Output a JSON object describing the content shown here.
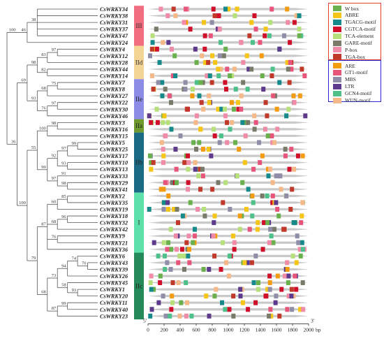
{
  "genes": [
    "CsWRKY34",
    "CsWRKY38",
    "CsWRKY31",
    "CsWRKY37",
    "CsWRKY47",
    "CsWRKY24",
    "CsWRKY4",
    "CsWRKY12",
    "CsWRKY28",
    "CsWRKY44",
    "CsWRKY14",
    "CsWRKY7",
    "CsWRKY8",
    "CsWRKY27",
    "CsWRKY22",
    "CsWRKY30",
    "CsWRKY46",
    "CsWRKY3",
    "CsWRKY16",
    "CsWRKY15",
    "CsWRKY5",
    "CsWRKY25",
    "CsWRKY17",
    "CsWRKY10",
    "CsWRKY13",
    "CsWRKY33",
    "CsWRKY29",
    "CsWRKY41",
    "CsWRKY2",
    "CsWRKY35",
    "CsWRKY19",
    "CsWRKY18",
    "CsWRKY32",
    "CsWRKY42",
    "CsWRKY9",
    "CsWRKY21",
    "CsWRKY36",
    "CsWRKY6",
    "CsWRKY43",
    "CsWRKY39",
    "CsWRKY26",
    "CsWRKY45",
    "CsWRKY1",
    "CsWRKY20",
    "CsWRKY11",
    "CsWRKY40",
    "CsWRKY23"
  ],
  "groups": [
    {
      "label": "III",
      "from": 0,
      "to": 5,
      "color": "#f06e80"
    },
    {
      "label": "IId",
      "from": 6,
      "to": 10,
      "color": "#f5d596"
    },
    {
      "label": "IIe",
      "from": 11,
      "to": 16,
      "color": "#8c8ce6"
    },
    {
      "label": "IIa",
      "from": 17,
      "to": 18,
      "color": "#6e9a2e"
    },
    {
      "label": "IIb",
      "from": 19,
      "to": 27,
      "color": "#1a6a86"
    },
    {
      "label": "I",
      "from": 28,
      "to": 36,
      "color": "#5ee0aa"
    },
    {
      "label": "IIc",
      "from": 37,
      "to": 46,
      "color": "#248a5a"
    }
  ],
  "tree": {
    "children": [
      {
        "support": "100",
        "children": [
          {
            "support": "46",
            "children": [
              {
                "support": "38",
                "children": [
                  {
                    "leaf": 0
                  },
                  {
                    "leaf": 1
                  },
                  {
                    "leaf": 2
                  },
                  {
                    "leaf": 3
                  },
                  {
                    "leaf": 4
                  }
                ]
              },
              {
                "leaf": 5
              }
            ]
          }
        ]
      },
      {
        "support": "36",
        "children": [
          {
            "support": "69",
            "children": [
              {
                "support": "98",
                "children": [
                  {
                    "support": "83",
                    "children": [
                      {
                        "support": "97",
                        "children": [
                          {
                            "leaf": 6
                          },
                          {
                            "leaf": 7
                          }
                        ]
                      },
                      {
                        "leaf": 8
                      }
                    ]
                  },
                  {
                    "support": "82",
                    "children": [
                      {
                        "leaf": 9
                      },
                      {
                        "leaf": 10
                      }
                    ]
                  }
                ]
              },
              {
                "support": "93",
                "children": [
                  {
                    "support": "68",
                    "children": [
                      {
                        "support": "75",
                        "children": [
                          {
                            "leaf": 11
                          },
                          {
                            "leaf": 12
                          }
                        ]
                      },
                      {
                        "leaf": 13
                      }
                    ]
                  },
                  {
                    "support": "76",
                    "children": [
                      {
                        "support": "97",
                        "children": [
                          {
                            "leaf": 14
                          },
                          {
                            "leaf": 15
                          }
                        ]
                      },
                      {
                        "leaf": 16
                      }
                    ]
                  }
                ]
              }
            ]
          },
          {
            "support": "100",
            "children": [
              {
                "support": "55",
                "children": [
                  {
                    "support": "100",
                    "children": [
                      {
                        "support": "98",
                        "children": [
                          {
                            "leaf": 17
                          },
                          {
                            "leaf": 18
                          }
                        ]
                      },
                      {
                        "leaf": 19
                      }
                    ]
                  },
                  {
                    "support": "99",
                    "children": [
                      {
                        "support": "92",
                        "children": [
                          {
                            "support": "97",
                            "children": [
                              {
                                "support": "99",
                                "children": [
                                  {
                                    "leaf": 20
                                  },
                                  {
                                    "leaf": 21
                                  }
                                ]
                              },
                              {
                                "leaf": 22
                              }
                            ]
                          },
                          {
                            "support": "93",
                            "children": [
                              {
                                "leaf": 23
                              },
                              {
                                "leaf": 24
                              }
                            ]
                          }
                        ]
                      },
                      {
                        "support": "97",
                        "children": [
                          {
                            "support": "91",
                            "children": [
                              {
                                "leaf": 25
                              }
                            ]
                          },
                          {
                            "support": "98",
                            "children": [
                              {
                                "leaf": 26
                              },
                              {
                                "leaf": 27
                              }
                            ]
                          }
                        ]
                      }
                    ]
                  }
                ]
              },
              {
                "support": "79",
                "children": [
                  {
                    "support": "87",
                    "children": [
                      {
                        "support": "60",
                        "children": [
                          {
                            "support": "85",
                            "children": [
                              {
                                "leaf": 28
                              },
                              {
                                "leaf": 29
                              }
                            ]
                          },
                          {
                            "leaf": 30
                          }
                        ]
                      },
                      {
                        "support": "68",
                        "children": [
                          {
                            "support": "96",
                            "children": [
                              {
                                "leaf": 31
                              },
                              {
                                "leaf": 32
                              }
                            ]
                          },
                          {
                            "leaf": 33
                          }
                        ]
                      },
                      {
                        "support": "76",
                        "children": [
                          {
                            "leaf": 34
                          },
                          {
                            "leaf": 35
                          }
                        ]
                      },
                      {
                        "leaf": 36
                      }
                    ]
                  },
                  {
                    "support": "68",
                    "children": [
                      {
                        "support": "73",
                        "children": [
                          {
                            "support": "94",
                            "children": [
                              {
                                "support": "74",
                                "children": [
                                  {
                                    "leaf": 37
                                  },
                                  {
                                    "support": "70",
                                    "children": [
                                      {
                                        "leaf": 38
                                      },
                                      {
                                        "leaf": 39
                                      }
                                    ]
                                  }
                                ]
                              },
                              {
                                "leaf": 40
                              }
                            ]
                          },
                          {
                            "support": "58",
                            "children": [
                              {
                                "leaf": 41
                              },
                              {
                                "support": "93",
                                "children": [
                                  {
                                    "leaf": 42
                                  },
                                  {
                                    "leaf": 43
                                  }
                                ]
                              }
                            ]
                          }
                        ]
                      },
                      {
                        "support": "87",
                        "children": [
                          {
                            "support": "99",
                            "children": [
                              {
                                "leaf": 44
                              },
                              {
                                "leaf": 45
                              }
                            ]
                          },
                          {
                            "leaf": 46
                          }
                        ]
                      }
                    ]
                  }
                ]
              }
            ]
          }
        ]
      }
    ]
  },
  "motifs": [
    {
      "name": "W box",
      "color": "#6ab04c"
    },
    {
      "name": "ABRE",
      "color": "#f5c518"
    },
    {
      "name": "TGACG-motif",
      "color": "#168a8a"
    },
    {
      "name": "CGTCA-motif",
      "color": "#d0102a"
    },
    {
      "name": "TCA-element",
      "color": "#b6e07a"
    },
    {
      "name": "GARE-motif",
      "color": "#7a7a6a"
    },
    {
      "name": "P-box",
      "color": "#f08ca8"
    },
    {
      "name": "TGA-box",
      "color": "#c0392b"
    },
    {
      "name": "ARE",
      "color": "#f39c12"
    },
    {
      "name": "GT1-motif",
      "color": "#e8557a"
    },
    {
      "name": "MBS",
      "color": "#8e8ea8"
    },
    {
      "name": "LTR",
      "color": "#5e3a8c"
    },
    {
      "name": "GCN4-motif",
      "color": "#4ec08a"
    },
    {
      "name": "WUN-motif",
      "color": "#f5b888"
    }
  ],
  "legend": {
    "box1_color": "#e0402a",
    "box2_color": "#2a2ad0",
    "box1": [
      0,
      1,
      2,
      3,
      4,
      5,
      6,
      7
    ],
    "box2": [
      8,
      9,
      10,
      11,
      12,
      13
    ]
  },
  "axis": {
    "ticks": [
      0,
      200,
      400,
      600,
      800,
      1000,
      1200,
      1400,
      1600,
      1800,
      2000
    ],
    "unit_label": "bp",
    "five_prime": "5'",
    "three_prime": "3'",
    "max_bp": 2000
  }
}
